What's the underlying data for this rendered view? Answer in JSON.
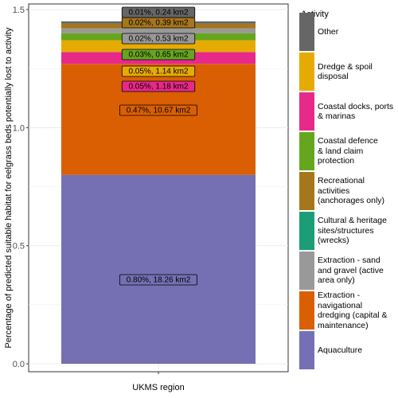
{
  "chart_data": {
    "type": "bar",
    "stacked": true,
    "categories": [
      "UKMS region"
    ],
    "ylabel": "Percentage of predicted suitable habitat for eelgrass beds potentially lost to activity",
    "xlabel": "",
    "ylim": [
      0,
      1.5
    ],
    "yticks": [
      "0.0",
      "0.5",
      "1.0",
      "1.5"
    ],
    "grid": true,
    "legend_position": "right",
    "legend_title": "Activity",
    "series": [
      {
        "name": "Aquaculture",
        "values": [
          0.8
        ],
        "label": "0.80%, 18.26 km2",
        "color": "#7570b3"
      },
      {
        "name": "Extraction - navigational dredging (capital & maintenance)",
        "values": [
          0.47
        ],
        "label": "0.47%, 10.67 km2",
        "color": "#d95f02"
      },
      {
        "name": "Coastal docks, ports & marinas",
        "values": [
          0.05
        ],
        "label": "0.05%, 1.18 km2",
        "color": "#e7298a"
      },
      {
        "name": "Dredge & spoil disposal",
        "values": [
          0.05
        ],
        "label": "0.05%, 1.14 km2",
        "color": "#e6ab02"
      },
      {
        "name": "Coastal defence & land claim protection",
        "values": [
          0.03
        ],
        "label": "0.03%, 0.65 km2",
        "color": "#66a61e"
      },
      {
        "name": "Extraction - sand and gravel (active area only)",
        "values": [
          0.02
        ],
        "label": "0.02%, 0.53 km2",
        "color": "#999999"
      },
      {
        "name": "Recreational activities (anchorages only)",
        "values": [
          0.02
        ],
        "label": "0.02%, 0.39 km2",
        "color": "#a6761d"
      },
      {
        "name": "Other",
        "values": [
          0.01
        ],
        "label": "0.01%, 0.24 km2",
        "color": "#666666"
      }
    ]
  },
  "legend": {
    "title": "Activity",
    "items": [
      {
        "label": "Other",
        "color": "#666666"
      },
      {
        "label": "Dredge & spoil\ndisposal",
        "color": "#e6ab02"
      },
      {
        "label": "Coastal docks, ports\n& marinas",
        "color": "#e7298a"
      },
      {
        "label": "Coastal defence\n& land claim\nprotection",
        "color": "#66a61e"
      },
      {
        "label": "Recreational\nactivities\n(anchorages only)",
        "color": "#a6761d"
      },
      {
        "label": "Cultural & heritage\nsites/structures\n(wrecks)",
        "color": "#1b9e77"
      },
      {
        "label": "Extraction - sand\nand gravel (active\narea only)",
        "color": "#999999"
      },
      {
        "label": "Extraction -\nnavigational\ndredging (capital &\nmaintenance)",
        "color": "#d95f02"
      },
      {
        "label": "Aquaculture",
        "color": "#7570b3"
      }
    ]
  }
}
